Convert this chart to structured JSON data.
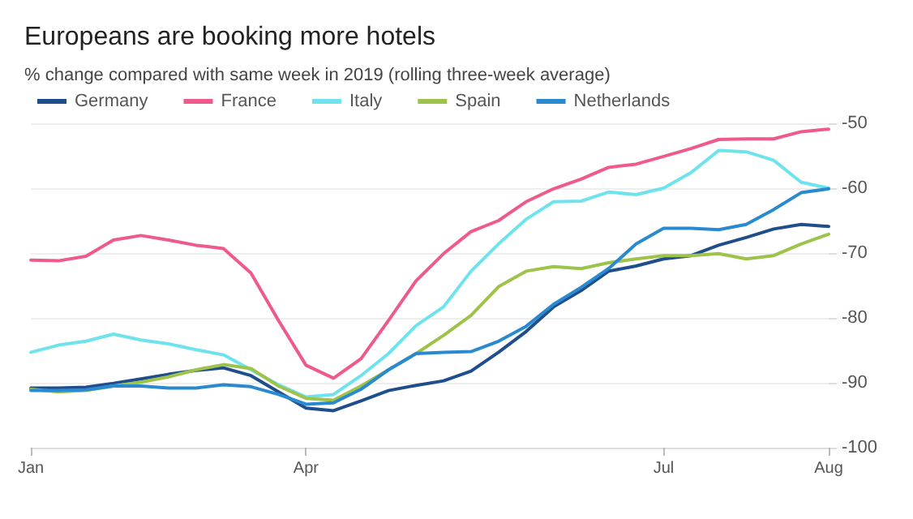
{
  "chart_data": {
    "type": "line",
    "title": "Europeans are booking more hotels",
    "subtitle": "% change compared with same week in 2019 (rolling three-week average)",
    "categories": [
      "Jan",
      null,
      null,
      null,
      null,
      null,
      null,
      null,
      null,
      null,
      "Apr",
      null,
      null,
      null,
      null,
      null,
      null,
      null,
      null,
      null,
      null,
      null,
      null,
      "Jul",
      null,
      null,
      null,
      null,
      null,
      "Aug"
    ],
    "series": [
      {
        "name": "Germany",
        "color": "#1f4e8c",
        "values": [
          -90.8,
          -90.8,
          -90.7,
          -90.1,
          -89.4,
          -88.7,
          -88.1,
          -87.7,
          -88.9,
          -91.4,
          -93.9,
          -94.3,
          -92.8,
          -91.2,
          -90.4,
          -89.7,
          -88.2,
          -85.3,
          -82.1,
          -78.3,
          -75.8,
          -72.8,
          -72,
          -70.9,
          -70.4,
          -68.8,
          -67.6,
          -66.3,
          -65.6,
          -65.9
        ]
      },
      {
        "name": "France",
        "color": "#ee5a8a",
        "values": [
          -71.1,
          -71.2,
          -70.5,
          -68,
          -67.3,
          -68,
          -68.8,
          -69.3,
          -73.1,
          -80.4,
          -87.3,
          -89.3,
          -86.3,
          -80.4,
          -74.3,
          -70.1,
          -66.7,
          -65,
          -62.1,
          -60.1,
          -58.6,
          -56.8,
          -56.3,
          -55.1,
          -53.9,
          -52.5,
          -52.4,
          -52.4,
          -51.3,
          -50.9
        ]
      },
      {
        "name": "Italy",
        "color": "#6ee3ee",
        "values": [
          -85.3,
          -84.2,
          -83.6,
          -82.5,
          -83.4,
          -84,
          -84.9,
          -85.7,
          -88,
          -90.3,
          -92.2,
          -91.8,
          -88.9,
          -85.5,
          -81.2,
          -78.3,
          -72.8,
          -68.6,
          -64.8,
          -62.1,
          -62,
          -60.6,
          -61,
          -60,
          -57.6,
          -54.2,
          -54.4,
          -55.7,
          -59.1,
          -60
        ]
      },
      {
        "name": "Spain",
        "color": "#9ec34b",
        "values": [
          -91,
          -91.4,
          -91.2,
          -90.5,
          -89.9,
          -89.1,
          -88,
          -87.2,
          -87.8,
          -90.5,
          -92.4,
          -92.7,
          -90.5,
          -88,
          -85.5,
          -82.7,
          -79.6,
          -75.2,
          -72.8,
          -72.1,
          -72.4,
          -71.5,
          -70.9,
          -70.4,
          -70.4,
          -70.1,
          -70.9,
          -70.4,
          -68.6,
          -67.1
        ]
      },
      {
        "name": "Netherlands",
        "color": "#2a8ad0",
        "values": [
          -91.2,
          -91.2,
          -91.1,
          -90.5,
          -90.5,
          -90.8,
          -90.8,
          -90.3,
          -90.6,
          -91.8,
          -93.3,
          -93.1,
          -91,
          -88,
          -85.5,
          -85.3,
          -85.2,
          -83.6,
          -81.3,
          -77.9,
          -75.3,
          -72.4,
          -68.6,
          -66.2,
          -66.2,
          -66.4,
          -65.6,
          -63.3,
          -60.7,
          -60.1
        ]
      }
    ],
    "ylim": [
      -100,
      -50
    ],
    "yticks": [
      -100,
      -90,
      -80,
      -70,
      -60,
      -50
    ],
    "grid": "y",
    "legend": "top left",
    "marker": "none",
    "line_style": "solid"
  }
}
